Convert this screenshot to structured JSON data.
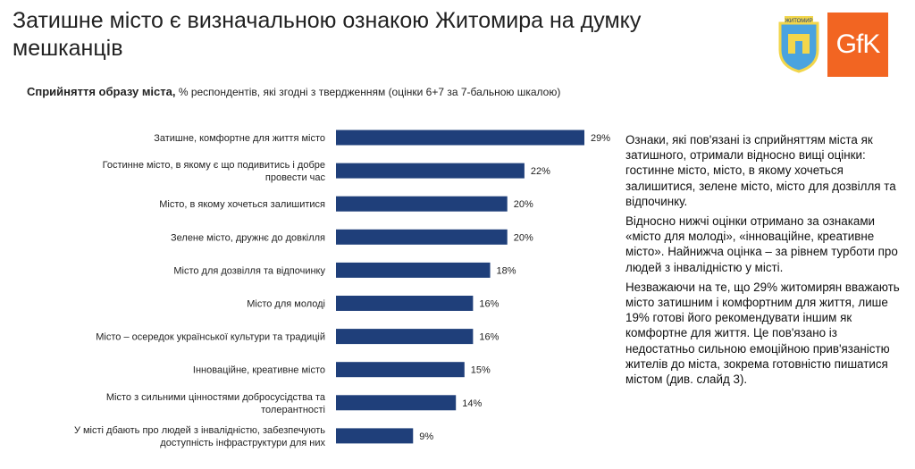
{
  "header": {
    "title": "Затишне місто є визначальною ознакою Житомира на думку мешканців",
    "subtitle_bold": "Сприйняття образу міста,",
    "subtitle_rest": " % респондентів, які згодні з твердженням (оцінки 6+7 за 7-бальною шкалою)"
  },
  "logos": {
    "crest_text": "ЖИТОМИР",
    "gfk_text": "GfK",
    "gfk_color": "#f26522",
    "crest_blue": "#4aa3df",
    "crest_yellow": "#f2d64b"
  },
  "chart_data": {
    "type": "bar",
    "orientation": "horizontal",
    "bar_color": "#1f3f7a",
    "categories": [
      [
        "Затишне, комфортне для життя місто"
      ],
      [
        "Гостинне місто, в якому є що подивитись і добре",
        "провести час"
      ],
      [
        "Місто, в якому хочеться залишитися"
      ],
      [
        "Зелене місто, дружнє до довкілля"
      ],
      [
        "Місто для дозвілля та відпочинку"
      ],
      [
        "Місто для молоді"
      ],
      [
        "Місто – осередок української культури та традицій"
      ],
      [
        "Інноваційне, креативне місто"
      ],
      [
        "Місто з сильними цінностями добросусідства та",
        "толерантності"
      ],
      [
        "У місті дбають про людей з інвалідністю, забезпечують",
        "доступність інфраструктури для них"
      ]
    ],
    "values": [
      29,
      22,
      20,
      20,
      18,
      16,
      16,
      15,
      14,
      9
    ],
    "value_labels": [
      "29%",
      "22%",
      "20%",
      "20%",
      "18%",
      "16%",
      "16%",
      "15%",
      "14%",
      "9%"
    ],
    "xlim": [
      0,
      29
    ]
  },
  "panel": {
    "paragraphs": [
      "Ознаки, які пов'язані із сприйняттям міста як затишного, отримали відносно вищі оцінки: гостинне місто, місто, в якому хочеться залишитися, зелене місто, місто для дозвілля та відпочинку.",
      "Відносно нижчі оцінки отримано за ознаками «місто для молоді», «інноваційне, креативне місто». Найнижча оцінка – за рівнем турботи про людей з інвалідністю у місті.",
      "Незважаючи на те, що 29% житомирян вважають місто затишним і комфортним для життя, лише 19% готові його рекомендувати іншим як комфортне для життя. Це пов'язано із недостатньо сильною емоційною прив'язаністю жителів до міста, зокрема готовністю пишатися містом (див. слайд 3)."
    ]
  }
}
